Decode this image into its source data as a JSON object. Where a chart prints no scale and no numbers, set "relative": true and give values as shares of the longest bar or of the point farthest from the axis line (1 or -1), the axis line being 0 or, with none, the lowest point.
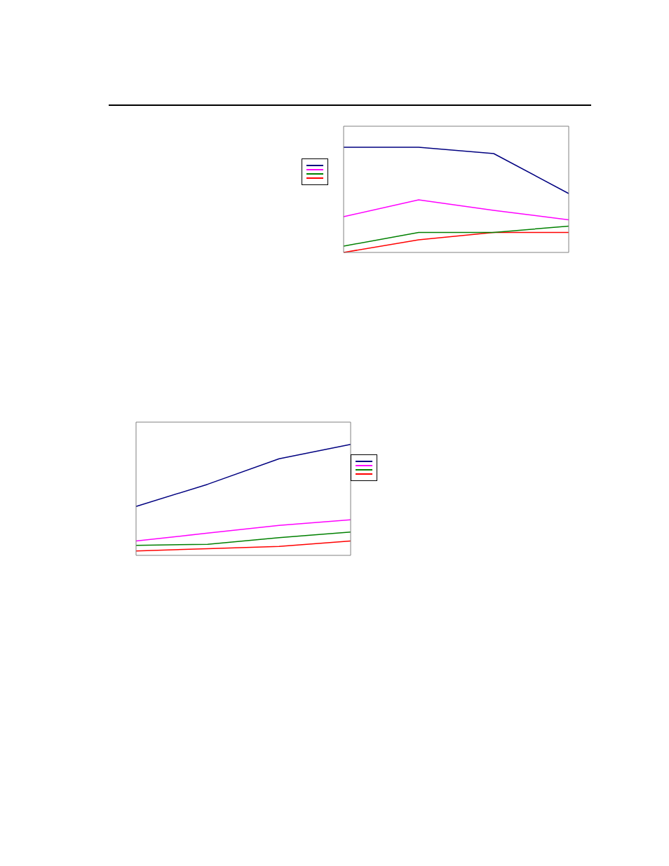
{
  "chart_data": [
    {
      "type": "line",
      "relative": true,
      "categories": [
        null,
        null,
        null,
        null
      ],
      "series": [
        {
          "color": "#000080",
          "values": [
            1,
            1,
            0.94,
            0.56
          ]
        },
        {
          "color": "#ff00ff",
          "values": [
            0.34,
            0.5,
            0.4,
            0.31
          ]
        },
        {
          "color": "#008000",
          "values": [
            0.06,
            0.19,
            0.19,
            0.25
          ]
        },
        {
          "color": "#ff0000",
          "values": [
            0,
            0.12,
            0.19,
            0.19
          ]
        }
      ]
    },
    {
      "type": "line",
      "relative": true,
      "categories": [
        null,
        null,
        null,
        null
      ],
      "series": [
        {
          "color": "#000080",
          "values": [
            0.44,
            0.64,
            0.87,
            1
          ]
        },
        {
          "color": "#ff00ff",
          "values": [
            0.13,
            0.2,
            0.27,
            0.32
          ]
        },
        {
          "color": "#008000",
          "values": [
            0.09,
            0.1,
            0.16,
            0.21
          ]
        },
        {
          "color": "#ff0000",
          "values": [
            0.04,
            0.06,
            0.08,
            0.13
          ]
        }
      ]
    }
  ]
}
